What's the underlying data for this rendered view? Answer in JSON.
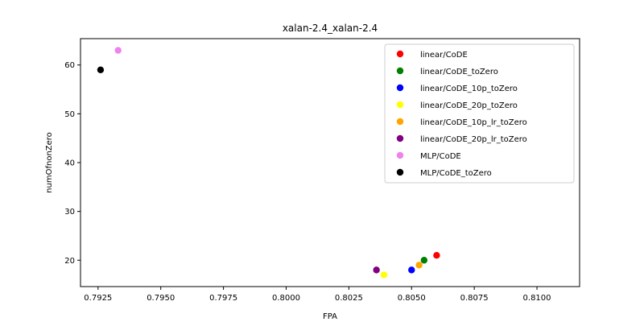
{
  "chart_data": {
    "type": "scatter",
    "title": "xalan-2.4_xalan-2.4",
    "xlabel": "FPA",
    "ylabel": "numOfnonZero",
    "xlim": [
      0.7918,
      0.8117
    ],
    "ylim": [
      14.6,
      65.4
    ],
    "xticks": [
      0.7925,
      0.795,
      0.7975,
      0.8,
      0.8025,
      0.805,
      0.8075,
      0.81
    ],
    "xtick_labels": [
      "0.7925",
      "0.7950",
      "0.7975",
      "0.8000",
      "0.8025",
      "0.8050",
      "0.8075",
      "0.8100"
    ],
    "yticks": [
      20,
      30,
      40,
      50,
      60
    ],
    "ytick_labels": [
      "20",
      "30",
      "40",
      "50",
      "60"
    ],
    "grid": false,
    "legend_position": "top-right",
    "series": [
      {
        "name": "linear/CoDE",
        "color": "#ff0000",
        "points": [
          [
            0.806,
            21
          ]
        ]
      },
      {
        "name": "linear/CoDE_toZero",
        "color": "#008000",
        "points": [
          [
            0.8055,
            20
          ]
        ]
      },
      {
        "name": "linear/CoDE_10p_toZero",
        "color": "#0000ff",
        "points": [
          [
            0.805,
            18
          ]
        ]
      },
      {
        "name": "linear/CoDE_20p_toZero",
        "color": "#ffff00",
        "points": [
          [
            0.8039,
            17
          ]
        ]
      },
      {
        "name": "linear/CoDE_10p_lr_toZero",
        "color": "#ffa500",
        "points": [
          [
            0.8053,
            19
          ]
        ]
      },
      {
        "name": "linear/CoDE_20p_lr_toZero",
        "color": "#800080",
        "points": [
          [
            0.8036,
            18
          ]
        ]
      },
      {
        "name": "MLP/CoDE",
        "color": "#ee82ee",
        "points": [
          [
            0.7933,
            63
          ]
        ]
      },
      {
        "name": "MLP/CoDE_toZero",
        "color": "#000000",
        "points": [
          [
            0.7926,
            59
          ]
        ]
      }
    ]
  }
}
